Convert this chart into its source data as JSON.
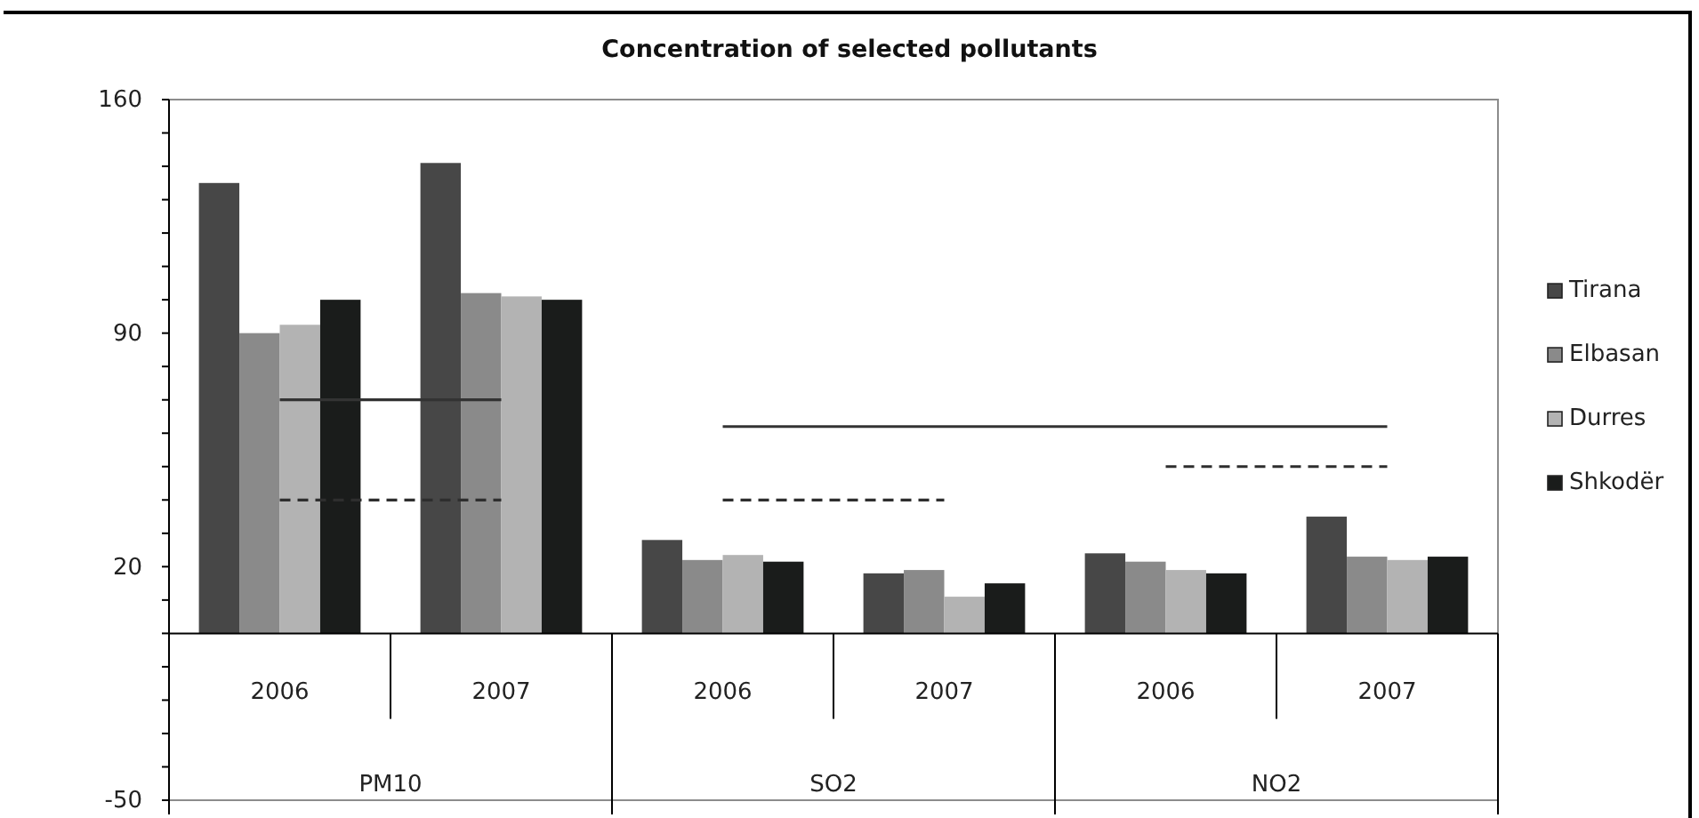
{
  "chart_data": {
    "type": "bar",
    "title": "Concentration of selected pollutants",
    "categories": [
      "2006",
      "2007",
      "2006",
      "2007",
      "2006",
      "2007"
    ],
    "annotations": [
      "PM10",
      "SO2",
      "NO2"
    ],
    "series": [
      {
        "name": "Tirana",
        "color": "#474747",
        "values": [
          135,
          141,
          28,
          18,
          24,
          35
        ]
      },
      {
        "name": "Elbasan",
        "color": "#8a8a8a",
        "values": [
          90,
          102,
          22,
          19,
          21.5,
          23
        ]
      },
      {
        "name": "Durres",
        "color": "#b3b3b3",
        "values": [
          92.5,
          101,
          23.5,
          11,
          19,
          22
        ]
      },
      {
        "name": "Shkodër",
        "color": "#1a1c1b",
        "values": [
          100,
          100,
          21.5,
          15,
          18,
          23
        ]
      },
      {
        "type": "line",
        "color": "#333333",
        "line_style": "solid",
        "values": [
          70,
          70,
          null,
          null,
          null,
          null
        ]
      },
      {
        "type": "line",
        "color": "#333333",
        "line_style": "solid",
        "values": [
          null,
          null,
          62,
          62,
          62,
          62
        ]
      },
      {
        "type": "line",
        "color": "#2e2e2e",
        "line_style": "dashed",
        "values": [
          40,
          40,
          null,
          null,
          null,
          null
        ]
      },
      {
        "type": "line",
        "color": "#2e2e2e",
        "line_style": "dashed",
        "values": [
          null,
          null,
          40,
          40,
          null,
          null
        ]
      },
      {
        "type": "line",
        "color": "#2e2e2e",
        "line_style": "dashed",
        "values": [
          null,
          null,
          null,
          null,
          50,
          50
        ]
      }
    ],
    "ylim": [
      -50,
      160
    ],
    "yticks": [
      -50,
      {
        "value": -40,
        "label": null
      },
      {
        "value": -30,
        "label": null
      },
      {
        "value": -20,
        "label": null
      },
      {
        "value": -10,
        "label": null
      },
      {
        "value": 0,
        "label": null
      },
      {
        "value": 10,
        "label": null
      },
      20,
      {
        "value": 30,
        "label": null
      },
      {
        "value": 40,
        "label": null
      },
      {
        "value": 50,
        "label": null
      },
      {
        "value": 60,
        "label": null
      },
      {
        "value": 70,
        "label": null
      },
      {
        "value": 80,
        "label": null
      },
      90,
      {
        "value": 100,
        "label": null
      },
      {
        "value": 110,
        "label": null
      },
      {
        "value": 120,
        "label": null
      },
      {
        "value": 130,
        "label": null
      },
      {
        "value": 140,
        "label": null
      },
      {
        "value": 150,
        "label": null
      },
      160
    ],
    "legend": "right"
  }
}
